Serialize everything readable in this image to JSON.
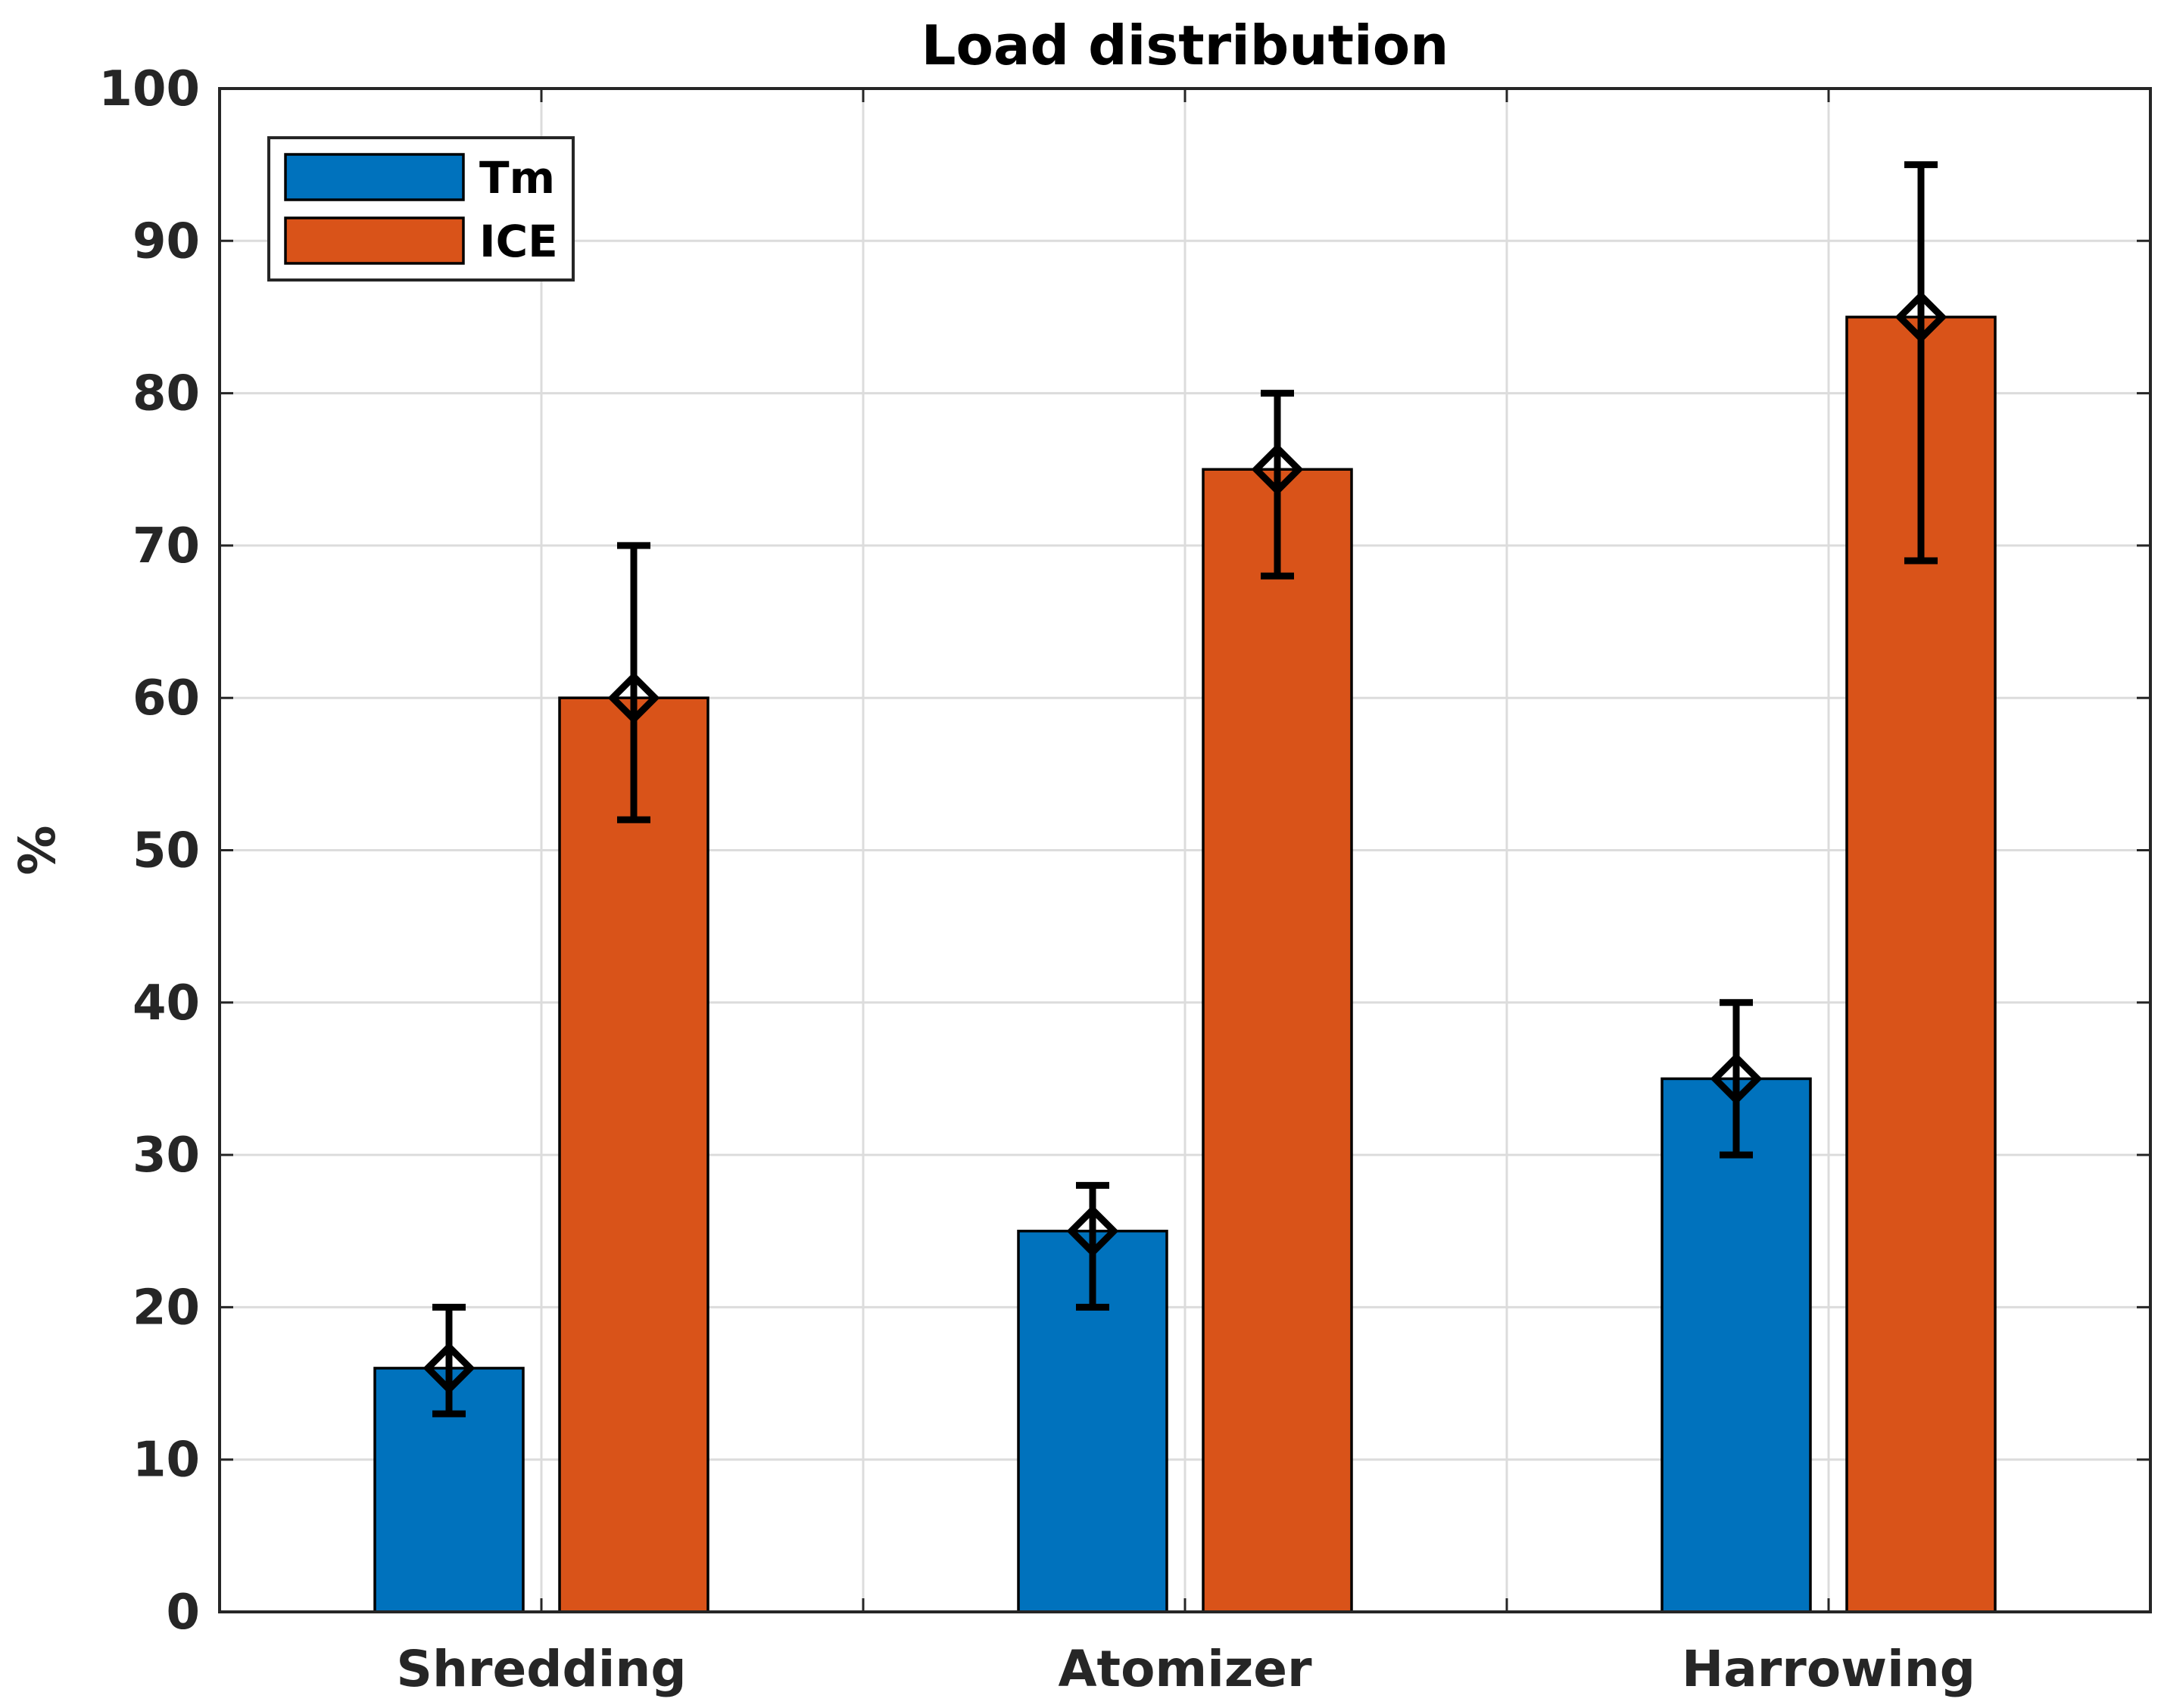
{
  "chart_data": {
    "type": "bar",
    "title": "Load distribution",
    "xlabel": "",
    "ylabel": "%",
    "ylim": [
      0,
      100
    ],
    "yticks": [
      0,
      10,
      20,
      30,
      40,
      50,
      60,
      70,
      80,
      90,
      100
    ],
    "grid": true,
    "legend_position": "top-left",
    "categories": [
      "Shredding",
      "Atomizer",
      "Harrowing"
    ],
    "series": [
      {
        "name": "Tm",
        "color": "#0072BD",
        "values": [
          16,
          25,
          35
        ],
        "error_low": [
          13,
          20,
          30
        ],
        "error_high": [
          20,
          28,
          40
        ]
      },
      {
        "name": "ICE",
        "color": "#D95319",
        "values": [
          60,
          75,
          85
        ],
        "error_low": [
          52,
          68,
          69
        ],
        "error_high": [
          70,
          80,
          95
        ]
      }
    ]
  }
}
